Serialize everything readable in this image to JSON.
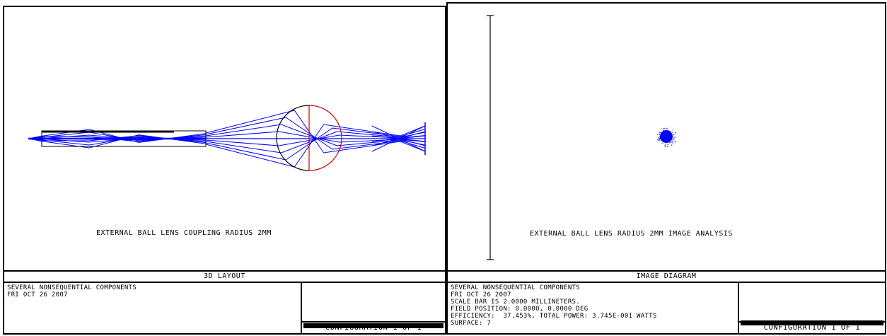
{
  "left_panel": {
    "caption": "EXTERNAL BALL LENS COUPLING RADIUS 2MM",
    "title": "3D LAYOUT",
    "info_lines": [
      "SEVERAL NONSEQUENTIAL COMPONENTS",
      "FRI OCT 26 2007"
    ],
    "configuration": "CONFIGURATION 1 OF 1"
  },
  "right_panel": {
    "caption": "EXTERNAL BALL LENS RADIUS 2MM IMAGE ANALYSIS",
    "title": "IMAGE DIAGRAM",
    "info_lines": [
      "SEVERAL NONSEQUENTIAL COMPONENTS",
      "FRI OCT 26 2007",
      "SCALE BAR IS 2.0000 MILLINETERS.",
      "FIELD POSITION: 0.0000, 0.0000 DEG",
      "EFFICIENCY:  37.453%, TOTAL POWER: 3.745E-001 WATTS",
      "SURFACE: 7"
    ],
    "configuration": "CONFIGURATION 1 OF 1"
  },
  "colors": {
    "rays": "#0000ff",
    "lens_front": "#000000",
    "lens_back": "#cc0000",
    "frame": "#000000"
  }
}
